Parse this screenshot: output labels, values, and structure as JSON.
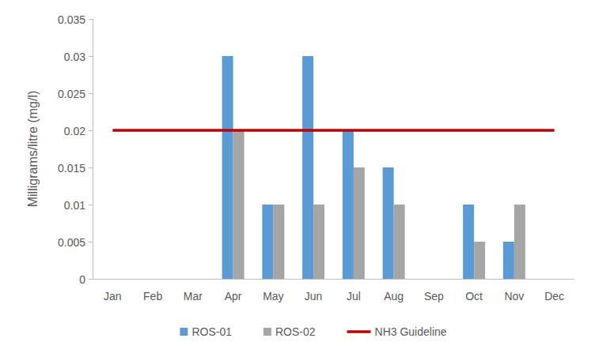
{
  "chart_data": {
    "type": "bar",
    "y_label": "Milligrams/litre (mg/l)",
    "categories": [
      "Jan",
      "Feb",
      "Mar",
      "Apr",
      "May",
      "Jun",
      "Jul",
      "Aug",
      "Sep",
      "Oct",
      "Nov",
      "Dec"
    ],
    "series": [
      {
        "name": "ROS-01",
        "color": "#5b9bd5",
        "values": [
          null,
          null,
          null,
          0.03,
          0.01,
          0.03,
          0.02,
          0.015,
          null,
          0.01,
          0.005,
          null
        ]
      },
      {
        "name": "ROS-02",
        "color": "#a5a5a5",
        "values": [
          null,
          null,
          null,
          0.02,
          0.01,
          0.01,
          0.015,
          0.01,
          null,
          0.005,
          0.01,
          null
        ]
      },
      {
        "name": "NH3 Guideline",
        "type": "line",
        "color": "#c00000",
        "values": [
          0.02,
          0.02,
          0.02,
          0.02,
          0.02,
          0.02,
          0.02,
          0.02,
          0.02,
          0.02,
          0.02,
          0.02
        ]
      }
    ],
    "ylim": [
      0,
      0.035
    ],
    "yticks": [
      0,
      0.005,
      0.01,
      0.015,
      0.02,
      0.025,
      0.03,
      0.035
    ],
    "grid": false,
    "legend": "bottom"
  }
}
